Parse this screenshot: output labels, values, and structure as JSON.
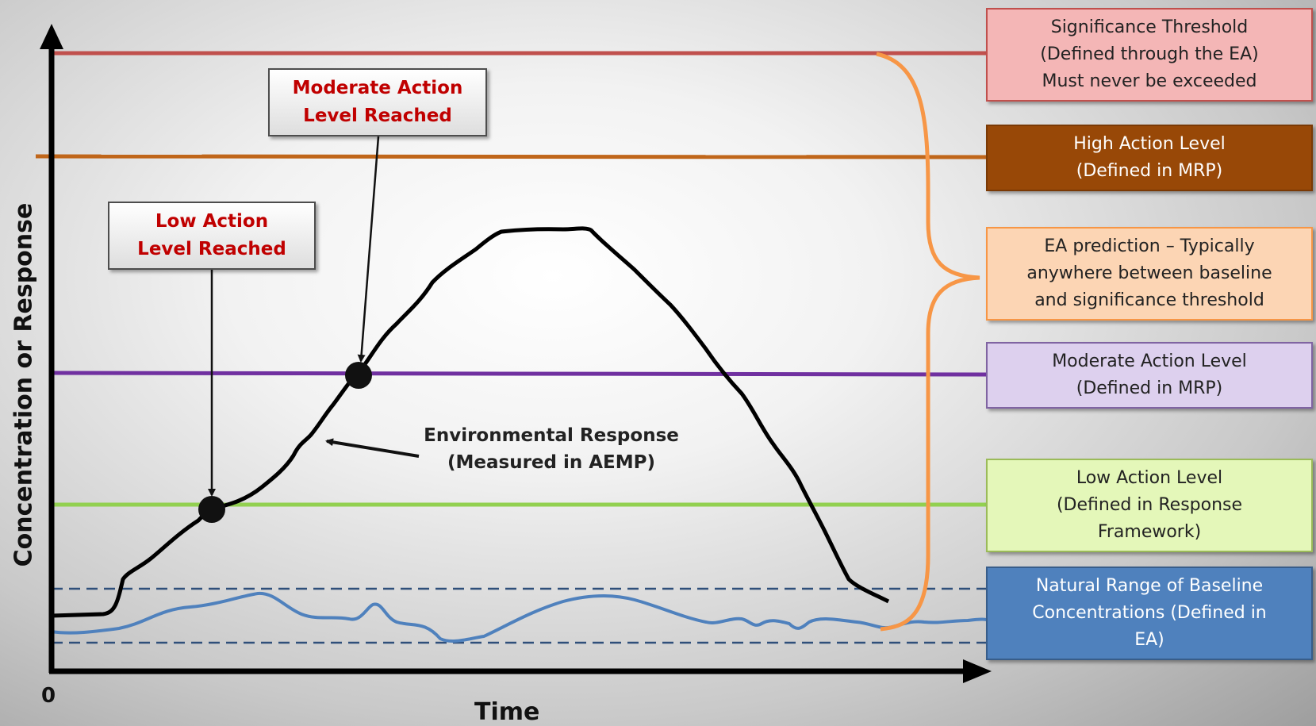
{
  "axes": {
    "y_label": "Concentration  or  Response",
    "x_label": "Time",
    "origin_label": "0"
  },
  "lines": {
    "significance_color": "#c0504d",
    "high_color": "#c0661a",
    "moderate_color": "#7030a0",
    "low_color": "#92d050",
    "baseline_color": "#4f81bd",
    "bracket_color": "#f79646",
    "response_color": "#000000"
  },
  "boxes": {
    "significance": {
      "lines": [
        "Significance Threshold",
        "(Defined through the EA)",
        "Must never be exceeded"
      ],
      "bg": "#f4b6b6",
      "border": "#c0504d",
      "text_color": "#222222"
    },
    "high": {
      "lines": [
        "High Action Level",
        "(Defined in MRP)"
      ],
      "bg": "#984807",
      "border": "#7a3905",
      "text_color": "#ffffff"
    },
    "ea_prediction": {
      "lines": [
        "EA prediction – Typically",
        "anywhere between baseline",
        "and significance threshold"
      ],
      "bg": "#fcd5b4",
      "border": "#f79646",
      "text_color": "#222222"
    },
    "moderate": {
      "lines": [
        "Moderate Action Level",
        "(Defined in MRP)"
      ],
      "bg": "#ddd0ee",
      "border": "#8064a2",
      "text_color": "#222222"
    },
    "low": {
      "lines": [
        "Low Action Level",
        "(Defined in Response",
        "Framework)"
      ],
      "bg": "#e4f7b9",
      "border": "#9bbb59",
      "text_color": "#222222"
    },
    "baseline": {
      "lines": [
        "Natural Range of Baseline",
        "Concentrations (Defined in",
        "EA)"
      ],
      "bg": "#4f81bd",
      "border": "#385d8a",
      "text_color": "#ffffff"
    }
  },
  "callouts": {
    "moderate_reached": [
      "Moderate Action",
      "Level Reached"
    ],
    "low_reached": [
      "Low Action",
      "Level Reached"
    ]
  },
  "annotation": {
    "environmental_response": [
      "Environmental Response",
      "(Measured in AEMP)"
    ]
  }
}
